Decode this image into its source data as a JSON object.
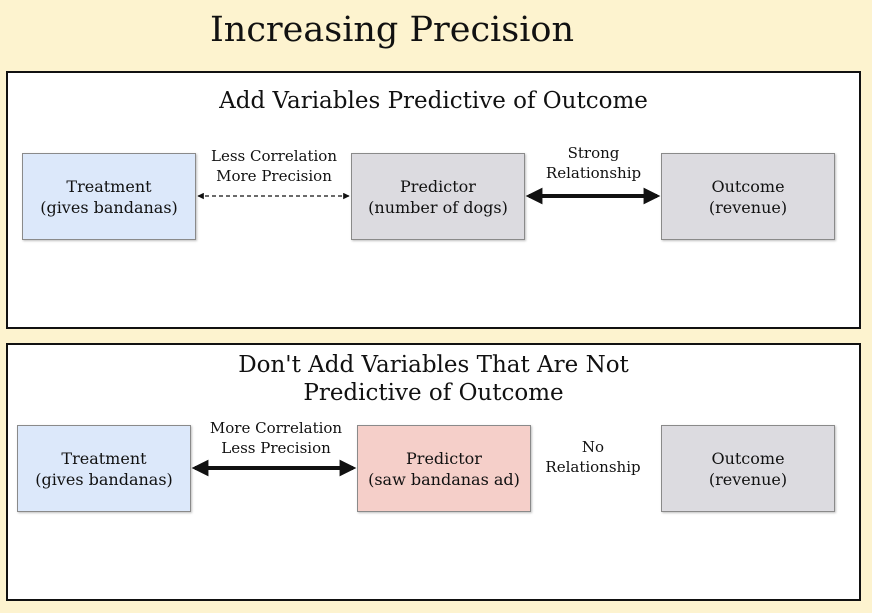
{
  "title": "Increasing Precision",
  "colors": {
    "background": "#fdf3cf",
    "treatment": "#dce8fa",
    "predictor_good": "#dcdbe0",
    "predictor_bad": "#f5cfc9",
    "outcome": "#dcdbe0"
  },
  "panel_top": {
    "title": "Add Variables Predictive of Outcome",
    "treatment": {
      "line1": "Treatment",
      "line2": "(gives bandanas)"
    },
    "predictor": {
      "line1": "Predictor",
      "line2": "(number of dogs)"
    },
    "outcome": {
      "line1": "Outcome",
      "line2": "(revenue)"
    },
    "link_left": {
      "line1": "Less Correlation",
      "line2": "More Precision",
      "style": "dashed"
    },
    "link_right": {
      "line1": "Strong",
      "line2": "Relationship",
      "style": "bold"
    }
  },
  "panel_bottom": {
    "title_line1": "Don't Add Variables That Are Not",
    "title_line2": "Predictive of Outcome",
    "treatment": {
      "line1": "Treatment",
      "line2": "(gives bandanas)"
    },
    "predictor": {
      "line1": "Predictor",
      "line2": "(saw bandanas ad)"
    },
    "outcome": {
      "line1": "Outcome",
      "line2": "(revenue)"
    },
    "link_left": {
      "line1": "More Correlation",
      "line2": "Less Precision",
      "style": "bold"
    },
    "link_right": {
      "line1": "No",
      "line2": "Relationship",
      "style": "none"
    }
  }
}
